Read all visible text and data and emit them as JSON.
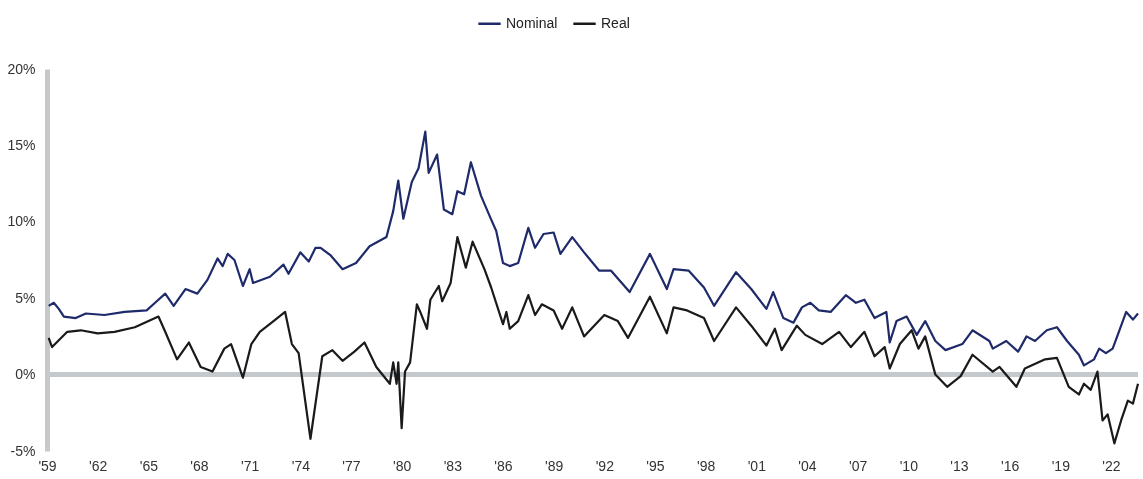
{
  "chart_data": {
    "type": "line",
    "legend": "top",
    "line_style": "solid",
    "grid": false,
    "xlim": [
      1959,
      2023.6
    ],
    "xticks": [
      {
        "value": 1959,
        "label": "'59"
      },
      {
        "value": 1962,
        "label": "'62"
      },
      {
        "value": 1965,
        "label": "'65"
      },
      {
        "value": 1968,
        "label": "'68"
      },
      {
        "value": 1971,
        "label": "'71"
      },
      {
        "value": 1974,
        "label": "'74"
      },
      {
        "value": 1977,
        "label": "'77"
      },
      {
        "value": 1980,
        "label": "'80"
      },
      {
        "value": 1983,
        "label": "'83"
      },
      {
        "value": 1986,
        "label": "'86"
      },
      {
        "value": 1989,
        "label": "'89"
      },
      {
        "value": 1992,
        "label": "'92"
      },
      {
        "value": 1995,
        "label": "'95"
      },
      {
        "value": 1998,
        "label": "'98"
      },
      {
        "value": 2001,
        "label": "'01"
      },
      {
        "value": 2004,
        "label": "'04"
      },
      {
        "value": 2007,
        "label": "'07"
      },
      {
        "value": 2010,
        "label": "'10"
      },
      {
        "value": 2013,
        "label": "'13"
      },
      {
        "value": 2016,
        "label": "'16"
      },
      {
        "value": 2019,
        "label": "'19"
      },
      {
        "value": 2022,
        "label": "'22"
      }
    ],
    "ylim": [
      -5,
      20
    ],
    "yticks": [
      {
        "value": -5,
        "label": "-5%"
      },
      {
        "value": 0,
        "label": "0%"
      },
      {
        "value": 5,
        "label": "5%"
      },
      {
        "value": 10,
        "label": "10%"
      },
      {
        "value": 15,
        "label": "15%"
      },
      {
        "value": 20,
        "label": "20%"
      }
    ],
    "ref_lines": [
      {
        "axis": "y",
        "value": 0,
        "color": "#c4c9cd"
      }
    ],
    "series": [
      {
        "name": "Nominal",
        "color": "#1f2a6b",
        "x": [
          1959.1,
          1959.4,
          1959.7,
          1960.0,
          1960.7,
          1961.3,
          1962.4,
          1963.6,
          1964.9,
          1965.4,
          1966.0,
          1966.5,
          1967.2,
          1967.9,
          1968.5,
          1969.1,
          1969.4,
          1969.7,
          1970.1,
          1970.6,
          1971.0,
          1971.2,
          1972.2,
          1973.0,
          1973.3,
          1974.0,
          1974.5,
          1974.9,
          1975.2,
          1975.8,
          1976.5,
          1977.3,
          1978.1,
          1979.1,
          1979.5,
          1979.8,
          1980.1,
          1980.6,
          1981.0,
          1981.4,
          1981.6,
          1982.1,
          1982.5,
          1983.0,
          1983.3,
          1983.7,
          1984.1,
          1984.7,
          1985.2,
          1985.6,
          1986.0,
          1986.4,
          1986.9,
          1987.5,
          1987.9,
          1988.4,
          1989.0,
          1989.4,
          1990.1,
          1990.8,
          1991.7,
          1992.4,
          1993.5,
          1994.7,
          1995.7,
          1996.1,
          1997.0,
          1997.9,
          1998.5,
          1999.8,
          2000.7,
          2001.6,
          2002.0,
          2002.6,
          2003.2,
          2003.7,
          2004.2,
          2004.7,
          2005.4,
          2006.3,
          2006.9,
          2007.4,
          2008.0,
          2008.7,
          2008.9,
          2009.3,
          2009.9,
          2010.5,
          2011.0,
          2011.6,
          2012.2,
          2013.2,
          2013.8,
          2014.8,
          2015.0,
          2015.8,
          2016.5,
          2017.0,
          2017.5,
          2018.2,
          2018.8,
          2019.4,
          2020.1,
          2020.4,
          2021.0,
          2021.3,
          2021.7,
          2022.1,
          2022.5,
          2022.9,
          2023.3,
          2023.6
        ],
        "values": [
          4.5,
          4.7,
          4.3,
          3.8,
          3.7,
          4.0,
          3.9,
          4.1,
          4.2,
          4.7,
          5.3,
          4.5,
          5.6,
          5.3,
          6.2,
          7.6,
          7.1,
          7.9,
          7.5,
          5.8,
          6.9,
          6.0,
          6.4,
          7.2,
          6.6,
          8.0,
          7.4,
          8.3,
          8.3,
          7.8,
          6.9,
          7.3,
          8.4,
          9.0,
          10.7,
          12.7,
          10.2,
          12.6,
          13.5,
          15.9,
          13.2,
          14.4,
          10.8,
          10.5,
          12.0,
          11.8,
          13.9,
          11.7,
          10.4,
          9.4,
          7.3,
          7.1,
          7.3,
          9.6,
          8.3,
          9.2,
          9.3,
          7.9,
          9.0,
          8.0,
          6.8,
          6.8,
          5.4,
          7.9,
          5.6,
          6.9,
          6.8,
          5.7,
          4.5,
          6.7,
          5.6,
          4.3,
          5.4,
          3.7,
          3.4,
          4.4,
          4.7,
          4.2,
          4.1,
          5.2,
          4.7,
          4.9,
          3.7,
          4.1,
          2.1,
          3.5,
          3.8,
          2.6,
          3.5,
          2.2,
          1.6,
          2.0,
          2.9,
          2.2,
          1.7,
          2.2,
          1.5,
          2.5,
          2.2,
          2.9,
          3.1,
          2.2,
          1.3,
          0.6,
          1.0,
          1.7,
          1.4,
          1.7,
          2.9,
          4.1,
          3.6,
          4.0
        ]
      },
      {
        "name": "Real",
        "color": "#1a1a1a",
        "x": [
          1959.1,
          1959.3,
          1960.2,
          1961.0,
          1962.0,
          1963.0,
          1964.2,
          1965.6,
          1966.0,
          1966.7,
          1967.4,
          1968.1,
          1968.8,
          1969.5,
          1969.9,
          1970.6,
          1971.1,
          1971.6,
          1972.3,
          1973.1,
          1973.5,
          1973.9,
          1974.6,
          1975.3,
          1975.9,
          1976.5,
          1977.2,
          1977.8,
          1978.5,
          1979.3,
          1979.5,
          1979.7,
          1979.8,
          1980.0,
          1980.2,
          1980.5,
          1980.9,
          1981.1,
          1981.5,
          1981.7,
          1982.2,
          1982.4,
          1982.9,
          1983.3,
          1983.8,
          1984.2,
          1984.9,
          1985.3,
          1986.0,
          1986.2,
          1986.4,
          1986.9,
          1987.5,
          1987.9,
          1988.3,
          1989.0,
          1989.5,
          1990.1,
          1990.8,
          1992.0,
          1992.8,
          1993.4,
          1994.7,
          1995.7,
          1996.1,
          1996.9,
          1997.9,
          1998.5,
          1999.8,
          2000.7,
          2001.6,
          2002.1,
          2002.5,
          2003.4,
          2003.9,
          2004.9,
          2005.9,
          2006.6,
          2007.4,
          2008.0,
          2008.6,
          2008.9,
          2009.5,
          2010.2,
          2010.6,
          2011.0,
          2011.6,
          2012.3,
          2013.1,
          2013.8,
          2015.0,
          2015.4,
          2016.4,
          2016.9,
          2018.1,
          2018.8,
          2019.5,
          2020.1,
          2020.4,
          2020.8,
          2021.2,
          2021.5,
          2021.8,
          2022.2,
          2022.6,
          2023.0,
          2023.3,
          2023.6
        ],
        "values": [
          2.4,
          1.8,
          2.8,
          2.9,
          2.7,
          2.8,
          3.1,
          3.8,
          2.8,
          1.0,
          2.1,
          0.5,
          0.2,
          1.7,
          2.0,
          -0.2,
          2.0,
          2.8,
          3.4,
          4.1,
          2.0,
          1.4,
          -4.2,
          1.2,
          1.6,
          0.9,
          1.5,
          2.1,
          0.5,
          -0.6,
          0.8,
          -0.6,
          0.8,
          -3.5,
          0.2,
          0.8,
          4.6,
          4.1,
          3.0,
          4.9,
          5.8,
          4.8,
          6.0,
          9.0,
          7.0,
          8.7,
          6.9,
          5.7,
          3.3,
          4.1,
          3.0,
          3.5,
          5.2,
          3.9,
          4.6,
          4.2,
          3.0,
          4.4,
          2.5,
          3.9,
          3.5,
          2.4,
          5.1,
          2.7,
          4.4,
          4.2,
          3.7,
          2.2,
          4.4,
          3.2,
          1.9,
          3.0,
          1.6,
          3.2,
          2.6,
          2.0,
          2.8,
          1.8,
          2.8,
          1.2,
          1.8,
          0.4,
          2.0,
          2.9,
          1.7,
          2.5,
          0.0,
          -0.8,
          -0.1,
          1.3,
          0.2,
          0.5,
          -0.8,
          0.4,
          1.0,
          1.1,
          -0.8,
          -1.3,
          -0.6,
          -1.0,
          0.2,
          -3.0,
          -2.6,
          -4.5,
          -3.0,
          -1.7,
          -1.9,
          -0.6
        ]
      }
    ]
  }
}
